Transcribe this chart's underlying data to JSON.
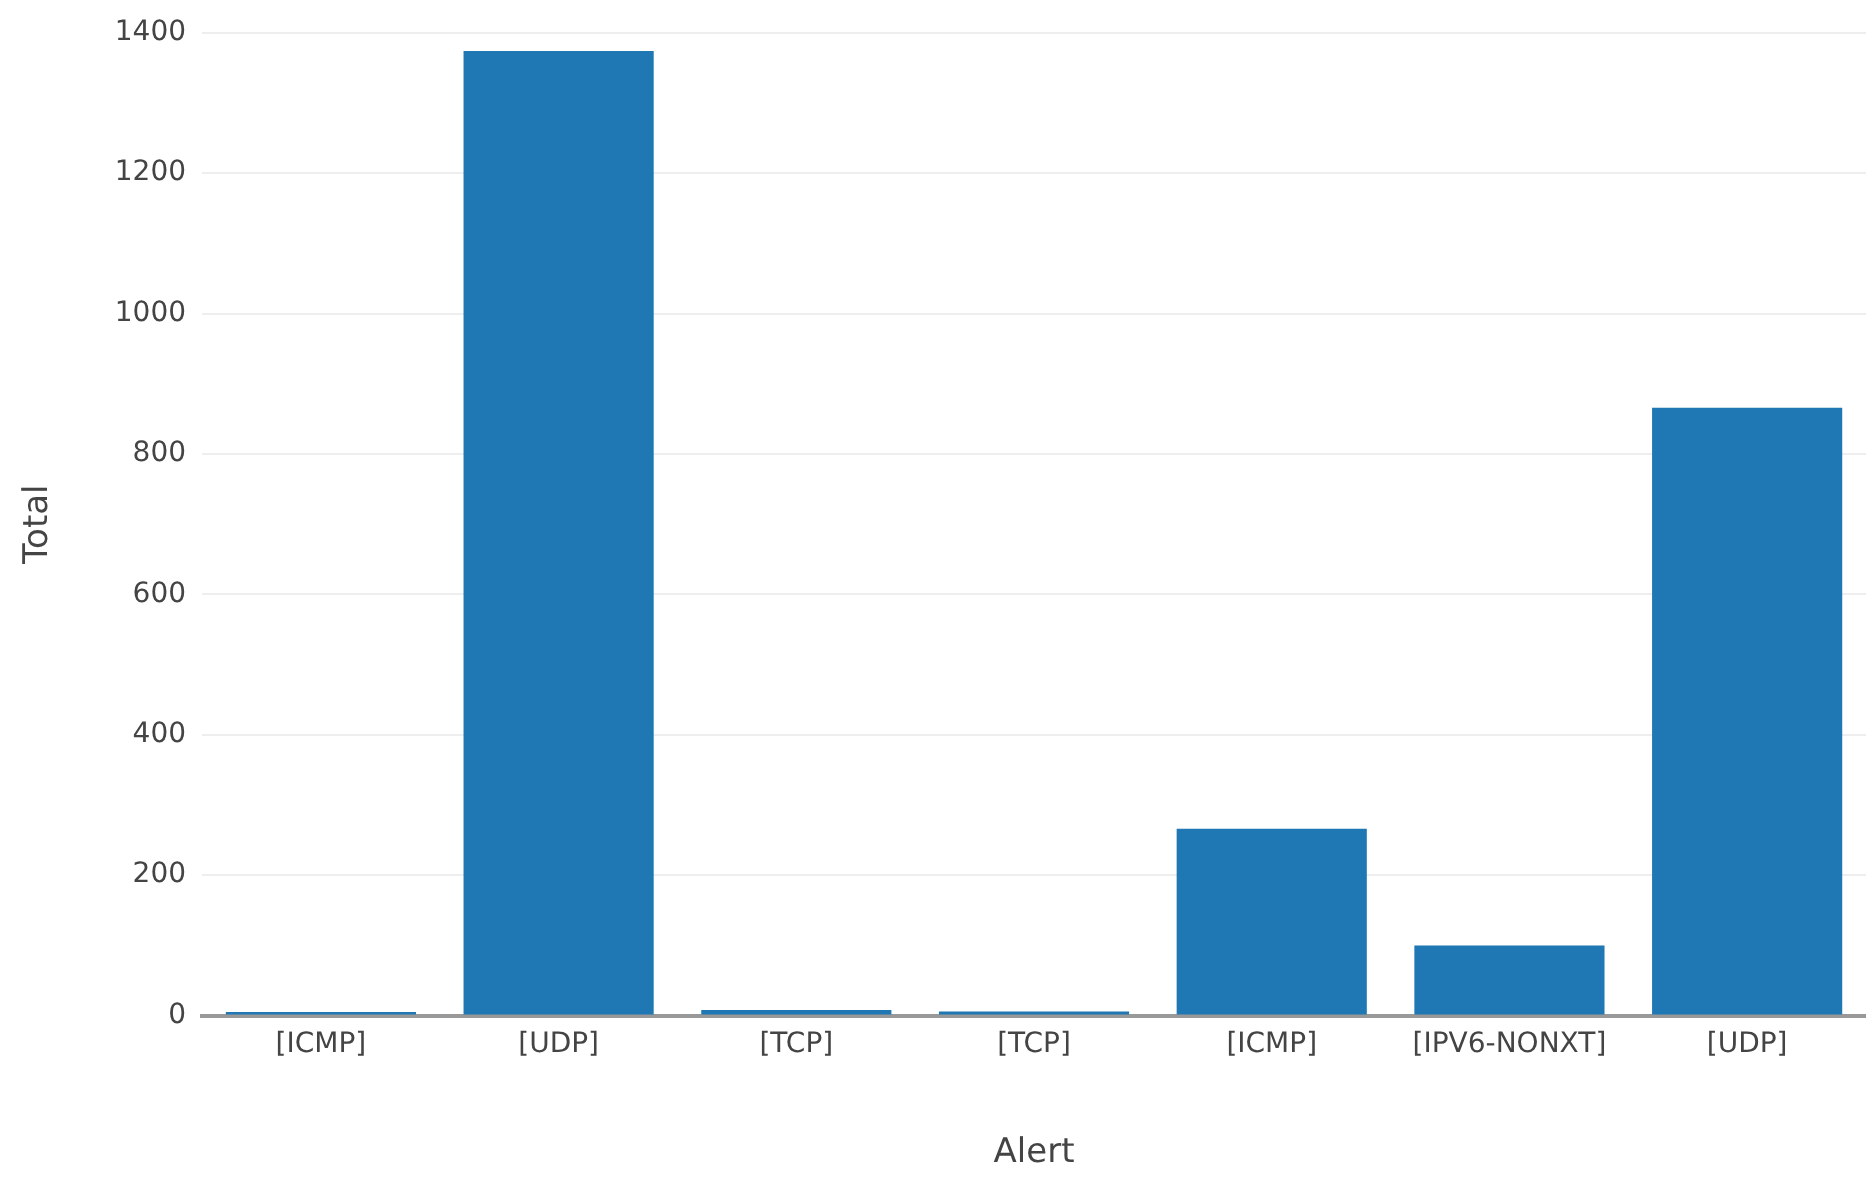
{
  "chart_data": {
    "type": "bar",
    "xlabel": "Alert",
    "ylabel": "Total",
    "categories": [
      "[ICMP]",
      "[UDP]",
      "[TCP]",
      "[TCP]",
      "[ICMP]",
      "[IPV6-NONXT]",
      "[UDP]"
    ],
    "values": [
      5,
      1374,
      8,
      6,
      266,
      100,
      866
    ],
    "color": "#1f77b4",
    "ylim": [
      0,
      1400
    ],
    "yticks": [
      0,
      200,
      400,
      600,
      800,
      1000,
      1200,
      1400
    ],
    "grid": "y"
  }
}
